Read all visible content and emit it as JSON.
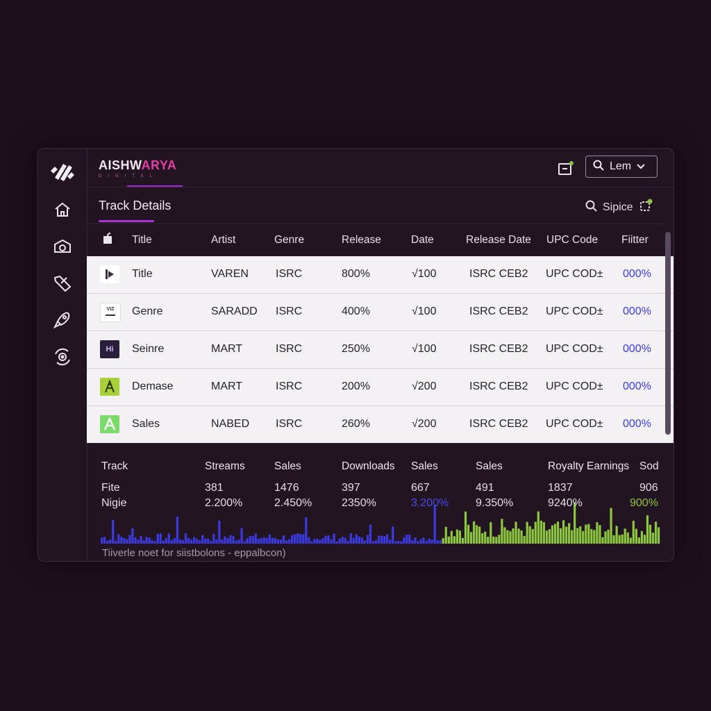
{
  "brand": {
    "name_part1": "AISHW",
    "name_part2": "ARYA",
    "sub": "DIGITAL"
  },
  "colors": {
    "accent": "#e63ea6",
    "purple": "#a02bd6",
    "blue": "#3b3ae0",
    "green": "#8dc63f",
    "background": "#1e0f1d"
  },
  "sidebar": {
    "items": [
      {
        "icon": "home-icon"
      },
      {
        "icon": "camera-icon"
      },
      {
        "icon": "tag-icon"
      },
      {
        "icon": "rocket-icon"
      },
      {
        "icon": "settings-icon"
      }
    ]
  },
  "topbar": {
    "user_label": "Lem"
  },
  "section": {
    "title": "Track Details"
  },
  "search": {
    "label": "Sipice"
  },
  "table": {
    "headers": [
      "Title",
      "Artist",
      "Genre",
      "Release",
      "Date",
      "Release Date",
      "UPC Code",
      "Fiitter"
    ],
    "rows": [
      {
        "thumb": "play",
        "title": "Title",
        "artist": "VAREN",
        "isrc": "ISRC",
        "release": "800%",
        "date": "√100",
        "rdate": "ISRC CEB2",
        "upc": "UPC COD±",
        "filter": "000%"
      },
      {
        "thumb": "vizar",
        "title": "Genre",
        "artist": "SARADD",
        "isrc": "ISRC",
        "release": "400%",
        "date": "√100",
        "rdate": "ISRC CEB2",
        "upc": "UPC COD±",
        "filter": "000%"
      },
      {
        "thumb": "hi",
        "title": "Seinre",
        "artist": "MART",
        "isrc": "ISRC",
        "release": "250%",
        "date": "√100",
        "rdate": "ISRC CEB2",
        "upc": "UPC COD±",
        "filter": "000%"
      },
      {
        "thumb": "tower",
        "title": "Demase",
        "artist": "MART",
        "isrc": "ISRC",
        "release": "200%",
        "date": "√200",
        "rdate": "ISRC CEB2",
        "upc": "UPC COD±",
        "filter": "000%"
      },
      {
        "thumb": "a",
        "title": "Sales",
        "artist": "NABED",
        "isrc": "ISRC",
        "release": "260%",
        "date": "√200",
        "rdate": "ISRC CEB2",
        "upc": "UPC COD±",
        "filter": "000%"
      }
    ]
  },
  "stats": {
    "headers": [
      "Track",
      "Streams",
      "Sales",
      "Downloads",
      "Sales",
      "Sales",
      "Royalty Earnings",
      "Sod"
    ],
    "row1": [
      "Fite",
      "381",
      "1476",
      "397",
      "667",
      "491",
      "1837",
      "906"
    ],
    "row2": [
      "Nigie",
      "2.200%",
      "2.450%",
      "2350%",
      "3.200%",
      "9.350%",
      "9240%",
      "900%"
    ],
    "footnote": "Tiiverle noet for siistbolons - eppalbcon)"
  }
}
